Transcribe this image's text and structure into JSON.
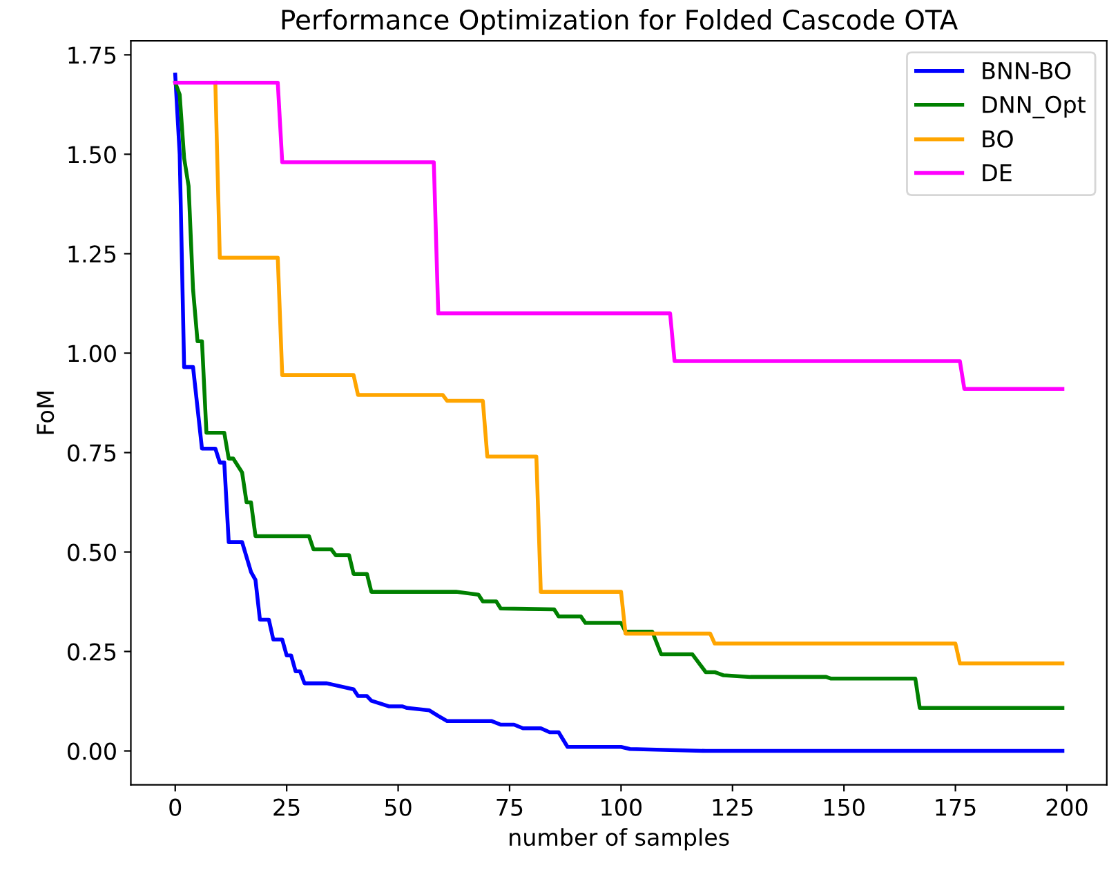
{
  "chart_data": {
    "type": "line",
    "title": "Performance Optimization for Folded Cascode OTA",
    "xlabel": "number of samples",
    "ylabel": "FoM",
    "series": [
      {
        "name": "BNN-BO",
        "color": "#0000ff",
        "x": [
          0,
          1,
          2,
          4,
          6,
          9,
          10,
          11,
          12,
          15,
          17,
          18,
          19,
          21,
          22,
          24,
          25,
          26,
          27,
          28,
          29,
          34,
          40,
          41,
          43,
          44,
          48,
          51,
          52,
          57,
          59,
          61,
          71,
          73,
          76,
          78,
          82,
          84,
          86,
          88,
          100,
          102,
          119,
          199
        ],
        "values": [
          1.7,
          1.5,
          0.965,
          0.965,
          0.76,
          0.76,
          0.725,
          0.725,
          0.525,
          0.525,
          0.45,
          0.43,
          0.33,
          0.33,
          0.28,
          0.28,
          0.24,
          0.24,
          0.2,
          0.2,
          0.17,
          0.17,
          0.155,
          0.138,
          0.138,
          0.126,
          0.112,
          0.112,
          0.108,
          0.102,
          0.088,
          0.075,
          0.075,
          0.066,
          0.066,
          0.057,
          0.057,
          0.047,
          0.047,
          0.01,
          0.01,
          0.005,
          0.0,
          0.0
        ]
      },
      {
        "name": "DNN_Opt",
        "color": "#008000",
        "x": [
          0,
          1,
          2,
          3,
          4,
          5,
          6,
          7,
          11,
          12,
          13,
          15,
          16,
          17,
          18,
          30,
          31,
          35,
          36,
          39,
          40,
          43,
          44,
          63,
          68,
          69,
          72,
          73,
          85,
          86,
          91,
          92,
          100,
          101,
          107,
          109,
          116,
          119,
          121,
          123,
          129,
          146,
          147,
          166,
          167,
          199
        ],
        "values": [
          1.68,
          1.65,
          1.49,
          1.42,
          1.16,
          1.03,
          1.03,
          0.8,
          0.8,
          0.735,
          0.735,
          0.7,
          0.625,
          0.625,
          0.54,
          0.54,
          0.507,
          0.507,
          0.492,
          0.492,
          0.445,
          0.445,
          0.4,
          0.4,
          0.393,
          0.376,
          0.376,
          0.358,
          0.356,
          0.338,
          0.338,
          0.322,
          0.322,
          0.3,
          0.3,
          0.243,
          0.243,
          0.198,
          0.198,
          0.19,
          0.186,
          0.186,
          0.182,
          0.182,
          0.108,
          0.108
        ]
      },
      {
        "name": "BO",
        "color": "#ffa500",
        "x": [
          9,
          10,
          23,
          24,
          40,
          41,
          60,
          61,
          69,
          70,
          81,
          82,
          100,
          101,
          120,
          121,
          175,
          176,
          199
        ],
        "values": [
          1.68,
          1.24,
          1.24,
          0.945,
          0.945,
          0.895,
          0.895,
          0.88,
          0.88,
          0.74,
          0.74,
          0.4,
          0.4,
          0.295,
          0.295,
          0.27,
          0.27,
          0.22,
          0.22
        ]
      },
      {
        "name": "DE",
        "color": "#ff00ff",
        "x": [
          0,
          23,
          24,
          58,
          59,
          111,
          112,
          176,
          177,
          199
        ],
        "values": [
          1.68,
          1.68,
          1.48,
          1.48,
          1.1,
          1.1,
          0.98,
          0.98,
          0.91,
          0.91
        ]
      }
    ],
    "xlim": [
      -9.95,
      208.95
    ],
    "ylim": [
      -0.085,
      1.785
    ],
    "xticks": [
      0,
      25,
      50,
      75,
      100,
      125,
      150,
      175,
      200
    ],
    "yticks": [
      {
        "value": 0,
        "label": "0.00"
      },
      {
        "value": 0.25,
        "label": "0.25"
      },
      {
        "value": 0.5,
        "label": "0.50"
      },
      {
        "value": 0.75,
        "label": "0.75"
      },
      {
        "value": 1.0,
        "label": "1.00"
      },
      {
        "value": 1.25,
        "label": "1.25"
      },
      {
        "value": 1.5,
        "label": "1.50"
      },
      {
        "value": 1.75,
        "label": "1.75"
      }
    ],
    "legend": "top right",
    "grid": false
  }
}
